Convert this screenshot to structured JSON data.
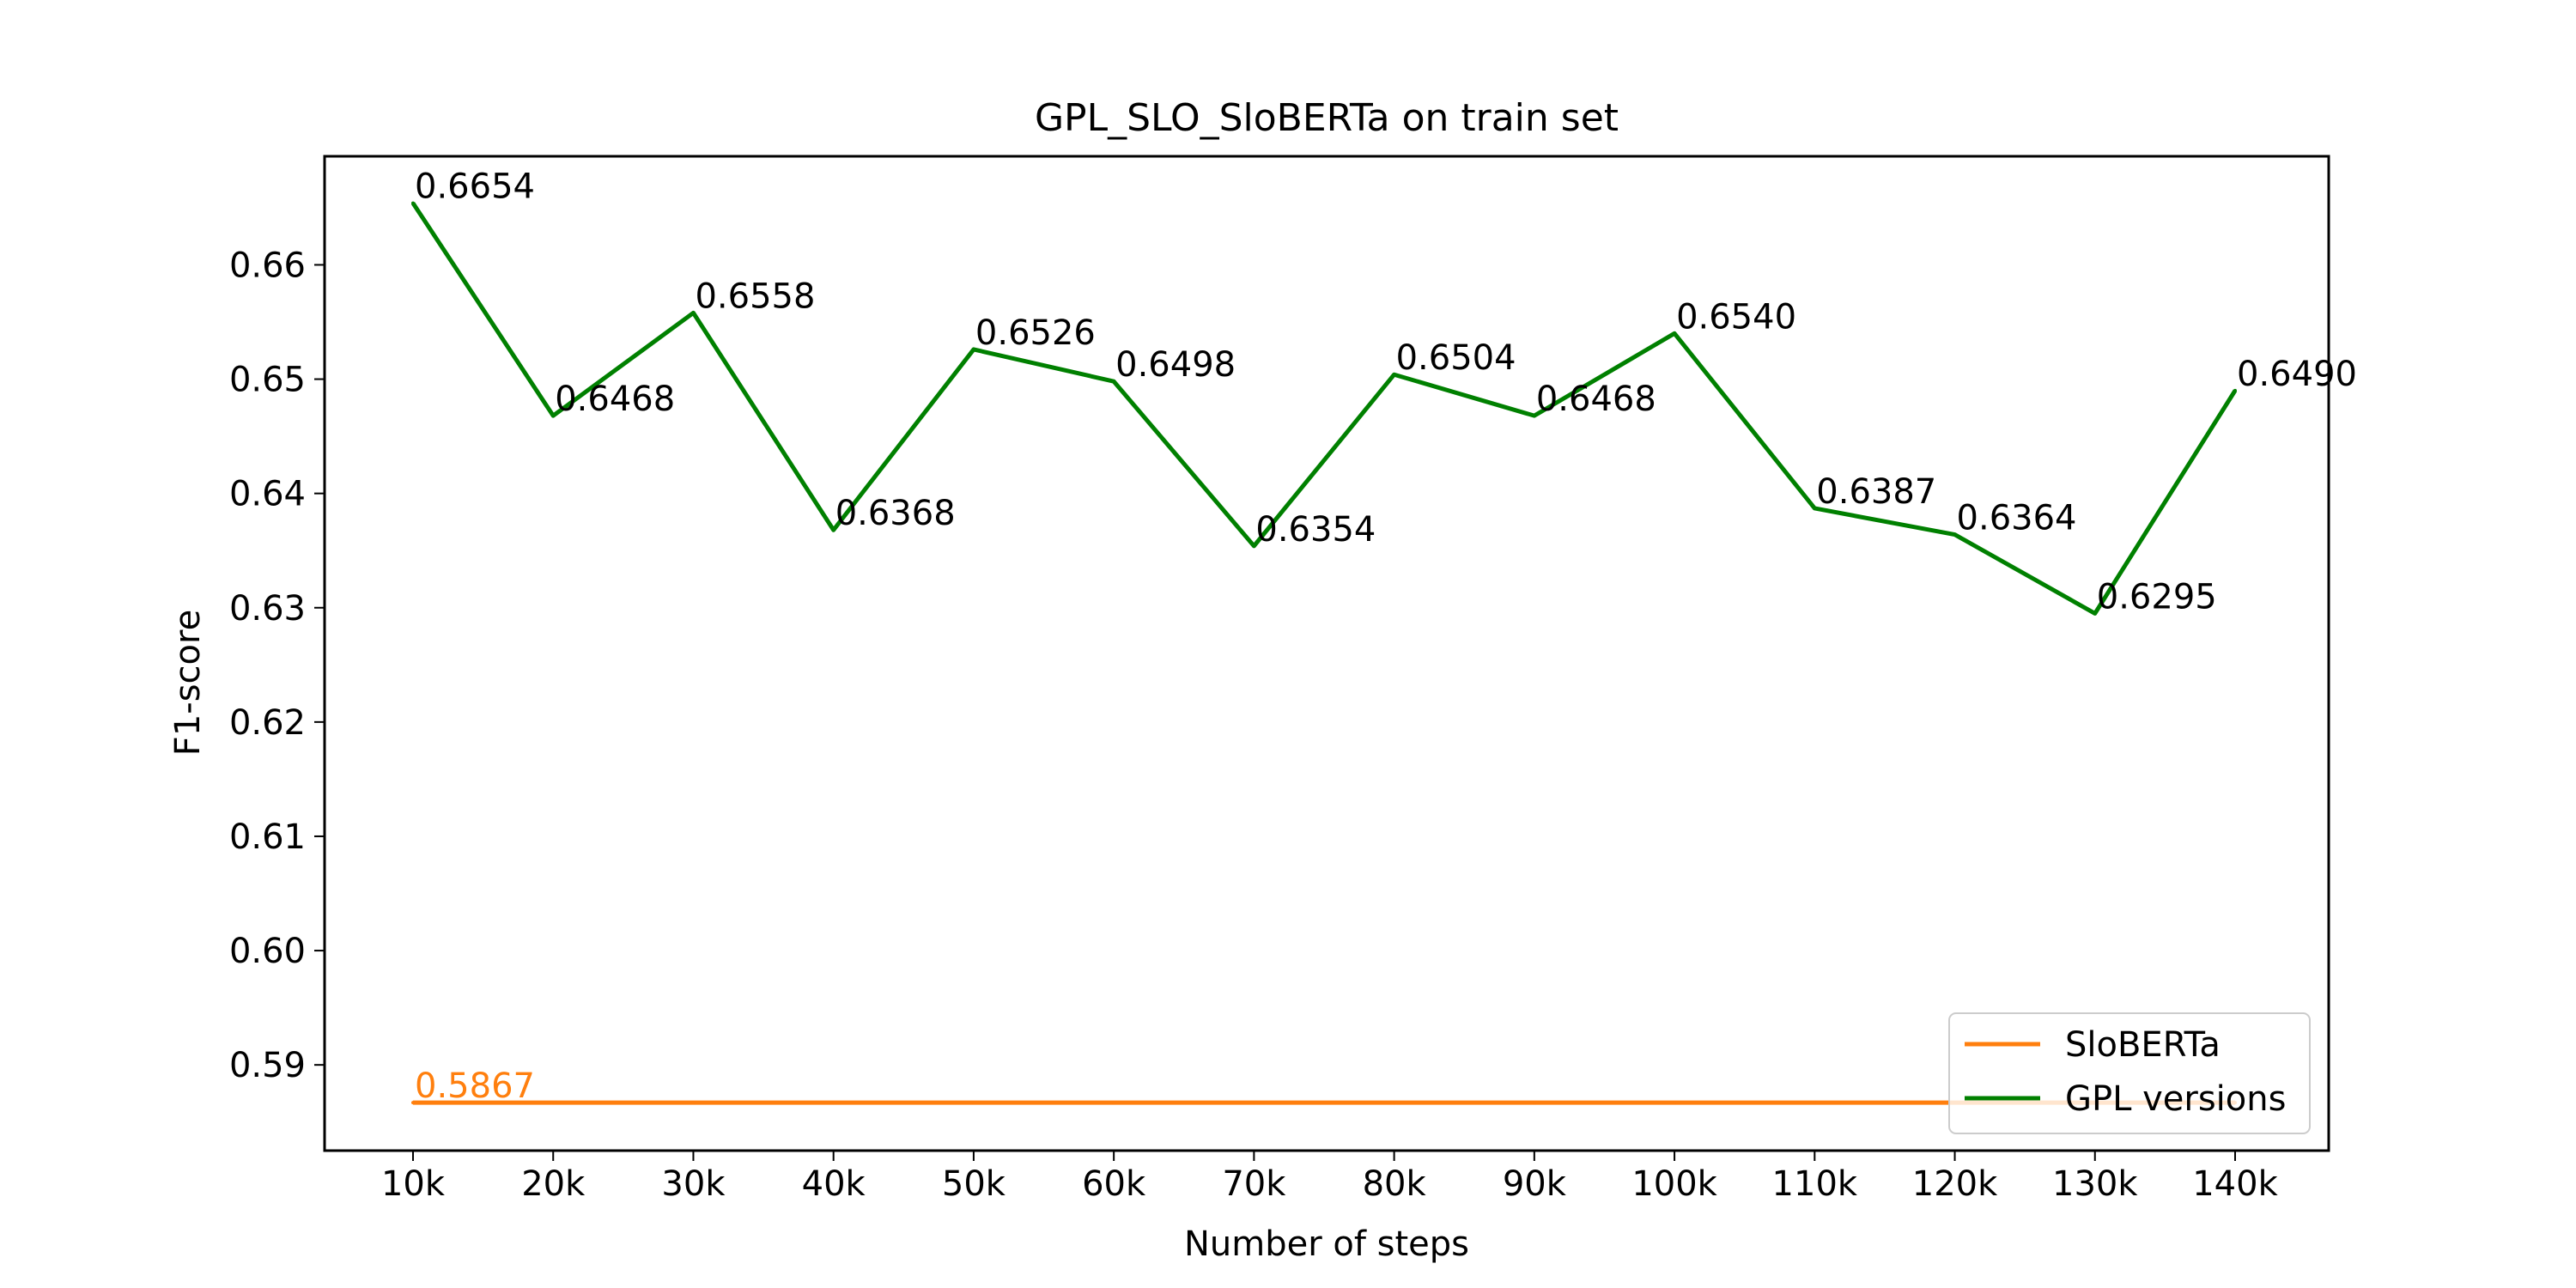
{
  "chart_data": {
    "type": "line",
    "title": "GPL_SLO_SloBERTa on train set",
    "xlabel": "Number of steps",
    "ylabel": "F1-score",
    "categories": [
      "10k",
      "20k",
      "30k",
      "40k",
      "50k",
      "60k",
      "70k",
      "80k",
      "90k",
      "100k",
      "110k",
      "120k",
      "130k",
      "140k"
    ],
    "ylim": [
      0.5825,
      0.6695
    ],
    "yticks": [
      "0.59",
      "0.60",
      "0.61",
      "0.62",
      "0.63",
      "0.64",
      "0.65",
      "0.66"
    ],
    "grid": false,
    "legend_position": "lower-right",
    "series": [
      {
        "name": "SloBERTa",
        "color": "#ff7f0e",
        "values": [
          0.5867,
          0.5867,
          0.5867,
          0.5867,
          0.5867,
          0.5867,
          0.5867,
          0.5867,
          0.5867,
          0.5867,
          0.5867,
          0.5867,
          0.5867,
          0.5867
        ],
        "labels": [
          {
            "index": 0,
            "text": "0.5867"
          }
        ]
      },
      {
        "name": "GPL versions",
        "color": "#008000",
        "values": [
          0.6654,
          0.6468,
          0.6558,
          0.6368,
          0.6526,
          0.6498,
          0.6354,
          0.6504,
          0.6468,
          0.654,
          0.6387,
          0.6364,
          0.6295,
          0.649
        ],
        "labels": [
          {
            "index": 0,
            "text": "0.6654"
          },
          {
            "index": 1,
            "text": "0.6468"
          },
          {
            "index": 2,
            "text": "0.6558"
          },
          {
            "index": 3,
            "text": "0.6368"
          },
          {
            "index": 4,
            "text": "0.6526"
          },
          {
            "index": 5,
            "text": "0.6498"
          },
          {
            "index": 6,
            "text": "0.6354"
          },
          {
            "index": 7,
            "text": "0.6504"
          },
          {
            "index": 8,
            "text": "0.6468"
          },
          {
            "index": 9,
            "text": "0.6540"
          },
          {
            "index": 10,
            "text": "0.6387"
          },
          {
            "index": 11,
            "text": "0.6364"
          },
          {
            "index": 12,
            "text": "0.6295"
          },
          {
            "index": 13,
            "text": "0.6490"
          }
        ]
      }
    ]
  }
}
